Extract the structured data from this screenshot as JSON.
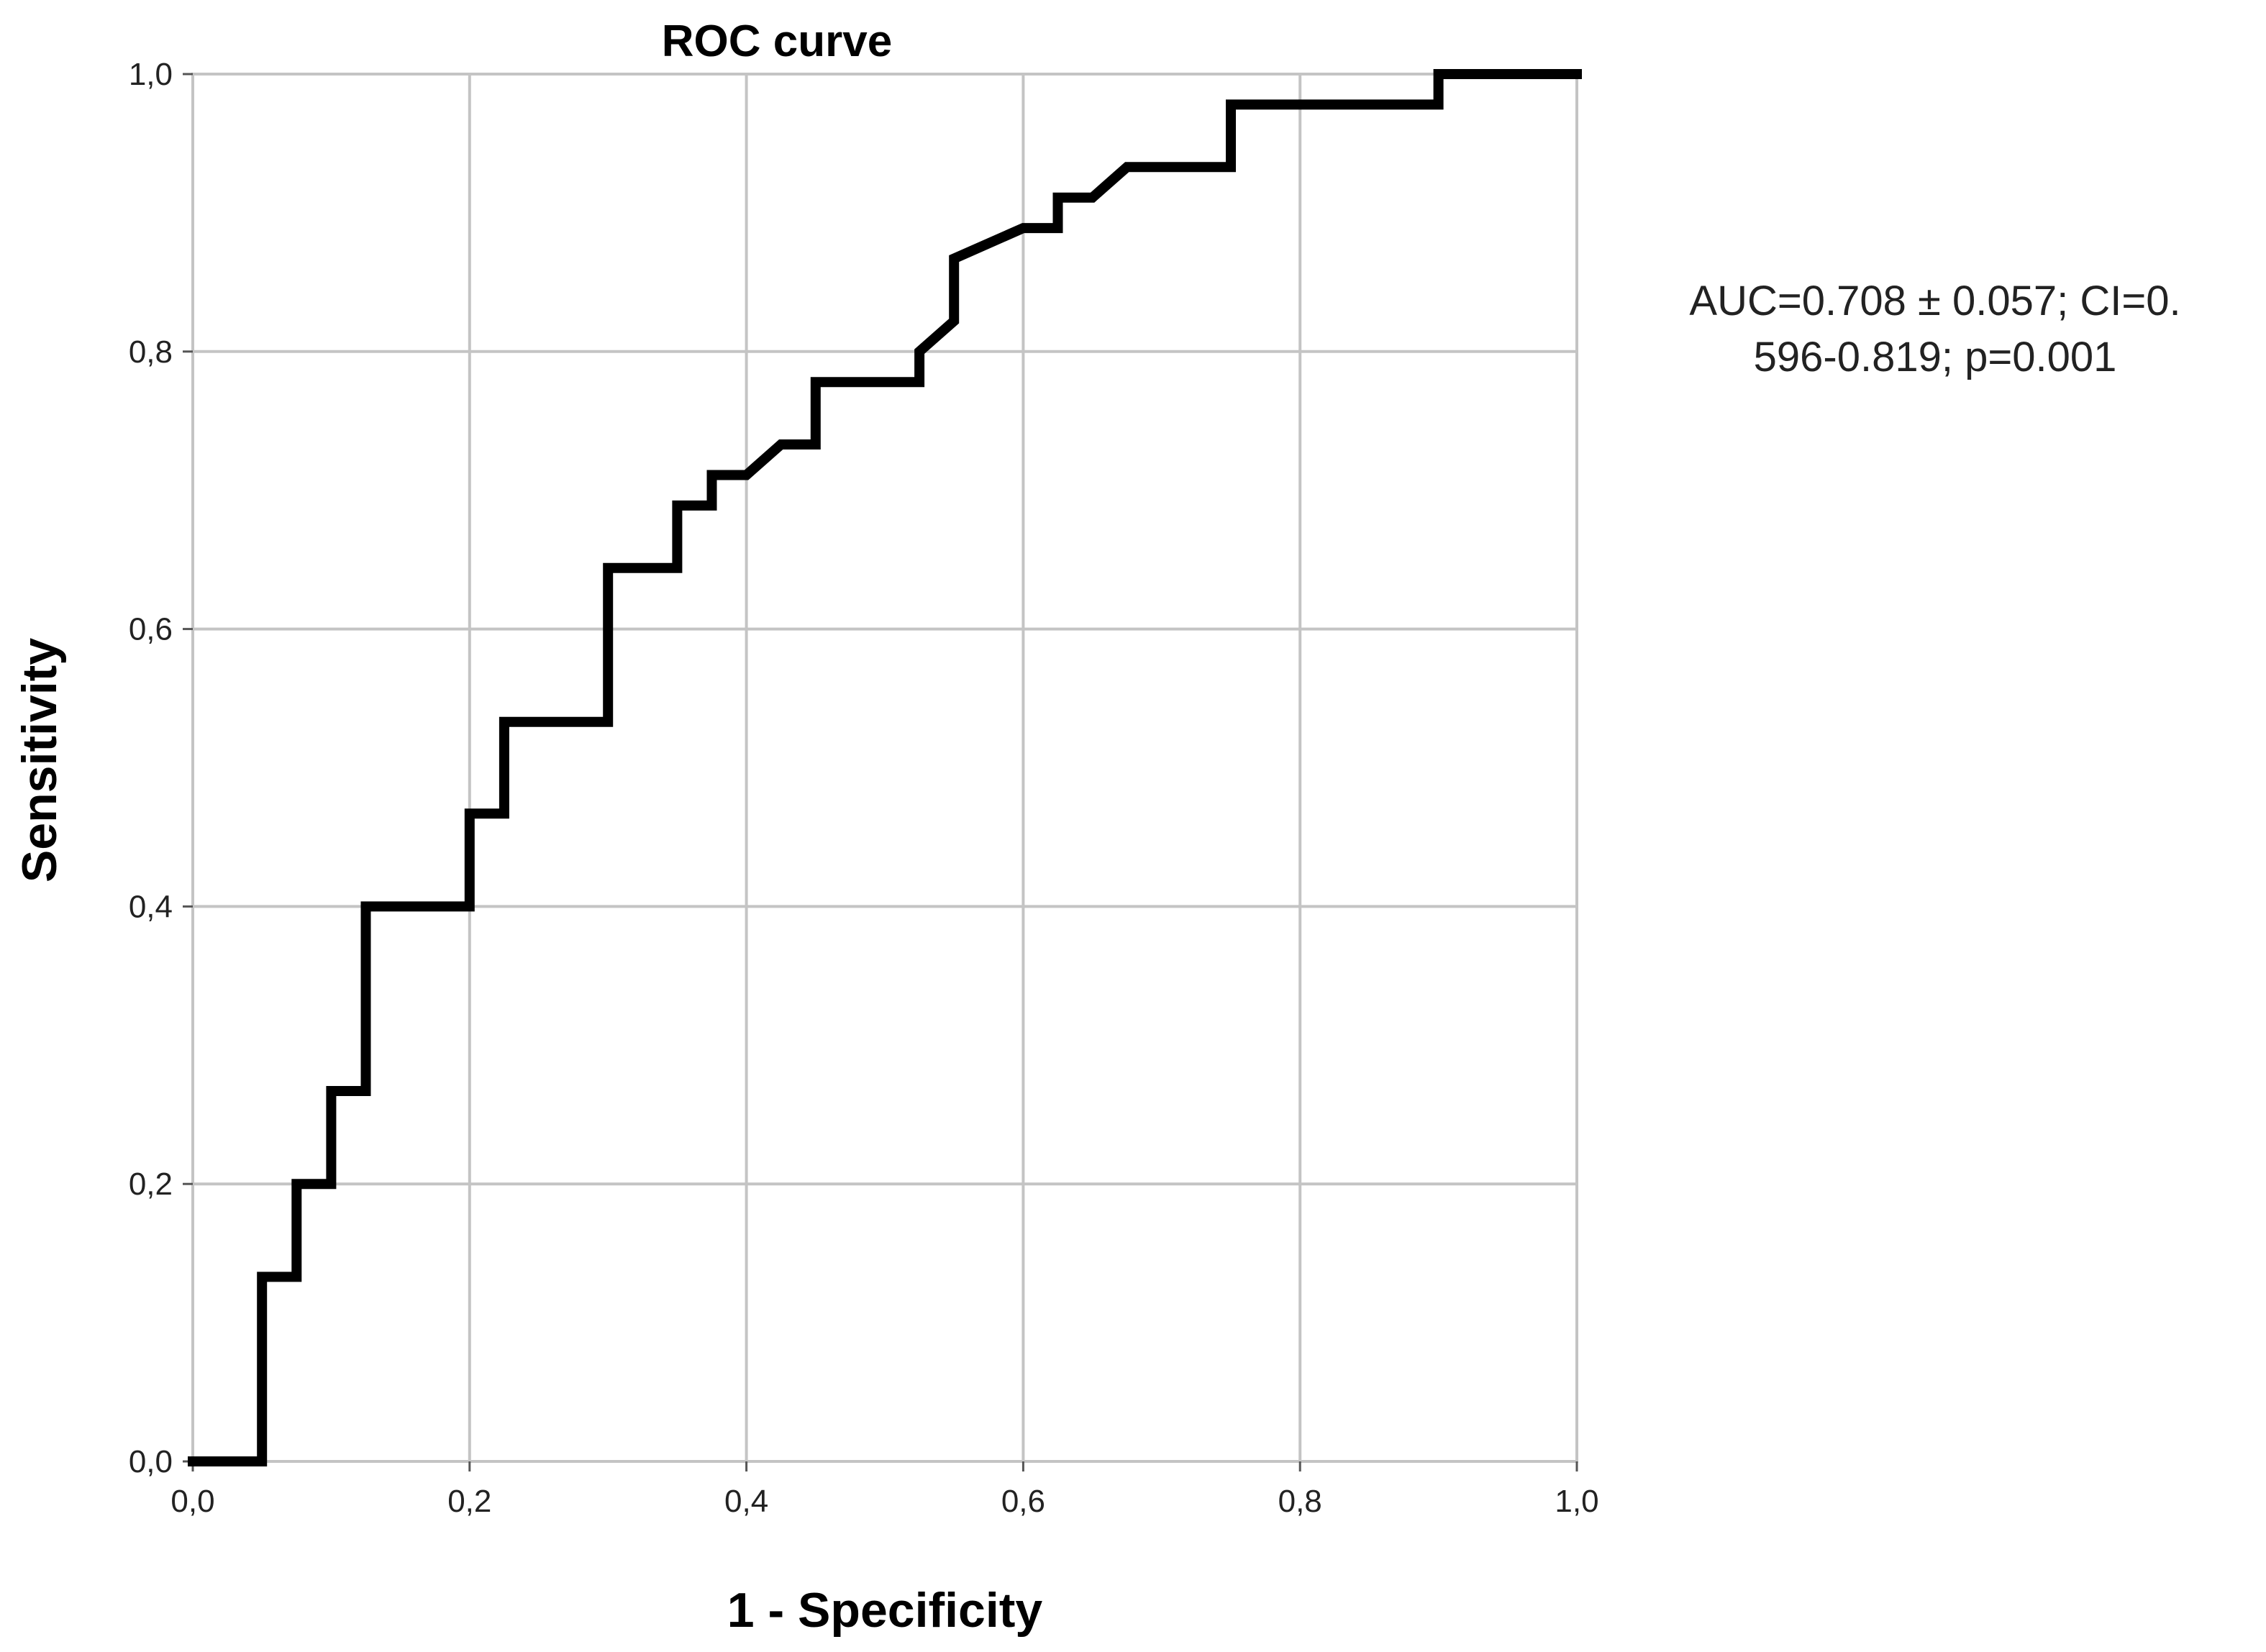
{
  "chart_data": {
    "type": "line",
    "title": "ROC curve",
    "xlabel": "1 - Specificity",
    "ylabel": "Sensitivity",
    "xlim": [
      0,
      1
    ],
    "ylim": [
      0,
      1
    ],
    "grid": true,
    "x_ticks": [
      "0,0",
      "0,2",
      "0,4",
      "0,6",
      "0,8",
      "1,0"
    ],
    "y_ticks": [
      "0,0",
      "0,2",
      "0,4",
      "0,6",
      "0,8",
      "1,0"
    ],
    "x_tick_values": [
      0,
      0.2,
      0.4,
      0.6,
      0.8,
      1.0
    ],
    "y_tick_values": [
      0,
      0.2,
      0.4,
      0.6,
      0.8,
      1.0
    ],
    "annotation": {
      "line1": "AUC=0.708 ± 0.057; CI=0.",
      "line2": "596-0.819; p=0.001"
    },
    "series": [
      {
        "x": [
          0,
          0.05,
          0.05,
          0.075,
          0.075,
          0.1,
          0.1,
          0.125,
          0.125,
          0.2,
          0.2,
          0.225,
          0.225,
          0.3,
          0.3,
          0.35,
          0.35,
          0.375,
          0.375,
          0.4,
          0.425,
          0.45,
          0.45,
          0.525,
          0.525,
          0.55,
          0.55,
          0.6,
          0.625,
          0.625,
          0.65,
          0.675,
          0.75,
          0.75,
          0.9,
          0.9,
          1.0
        ],
        "y": [
          0,
          0,
          0.133,
          0.133,
          0.2,
          0.2,
          0.267,
          0.267,
          0.4,
          0.4,
          0.467,
          0.467,
          0.533,
          0.533,
          0.644,
          0.644,
          0.689,
          0.689,
          0.711,
          0.711,
          0.733,
          0.733,
          0.778,
          0.778,
          0.8,
          0.822,
          0.867,
          0.889,
          0.889,
          0.911,
          0.911,
          0.933,
          0.933,
          0.978,
          0.978,
          1.0,
          1.0
        ]
      }
    ]
  }
}
